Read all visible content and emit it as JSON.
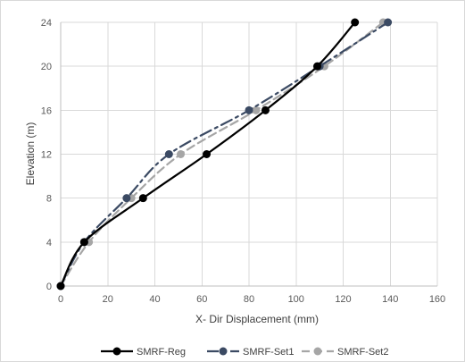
{
  "chart_data": {
    "type": "line",
    "title": "",
    "xlabel": "X- Dir Displacement (mm)",
    "ylabel": "Elevation (m)",
    "xlim": [
      0,
      160
    ],
    "ylim": [
      0,
      24
    ],
    "xticks": [
      0,
      20,
      40,
      60,
      80,
      100,
      120,
      140,
      160
    ],
    "yticks": [
      0,
      4,
      8,
      12,
      16,
      20,
      24
    ],
    "grid": true,
    "legend_position": "bottom",
    "series": [
      {
        "name": "SMRF-Reg",
        "color": "#000000",
        "line_style": "solid",
        "x": [
          0,
          10,
          35,
          62,
          87,
          109,
          125
        ],
        "y": [
          0,
          4,
          8,
          12,
          16,
          20,
          24
        ]
      },
      {
        "name": "SMRF-Set1",
        "color": "#3b4a63",
        "line_style": "dash-dot",
        "x": [
          0,
          10,
          28,
          46,
          80,
          110,
          139
        ],
        "y": [
          0,
          4,
          8,
          12,
          16,
          20,
          24
        ]
      },
      {
        "name": "SMRF-Set2",
        "color": "#a6a6a6",
        "line_style": "dashed",
        "x": [
          0,
          12,
          30,
          51,
          83,
          112,
          137
        ],
        "y": [
          0,
          4,
          8,
          12,
          16,
          20,
          24
        ]
      }
    ]
  }
}
